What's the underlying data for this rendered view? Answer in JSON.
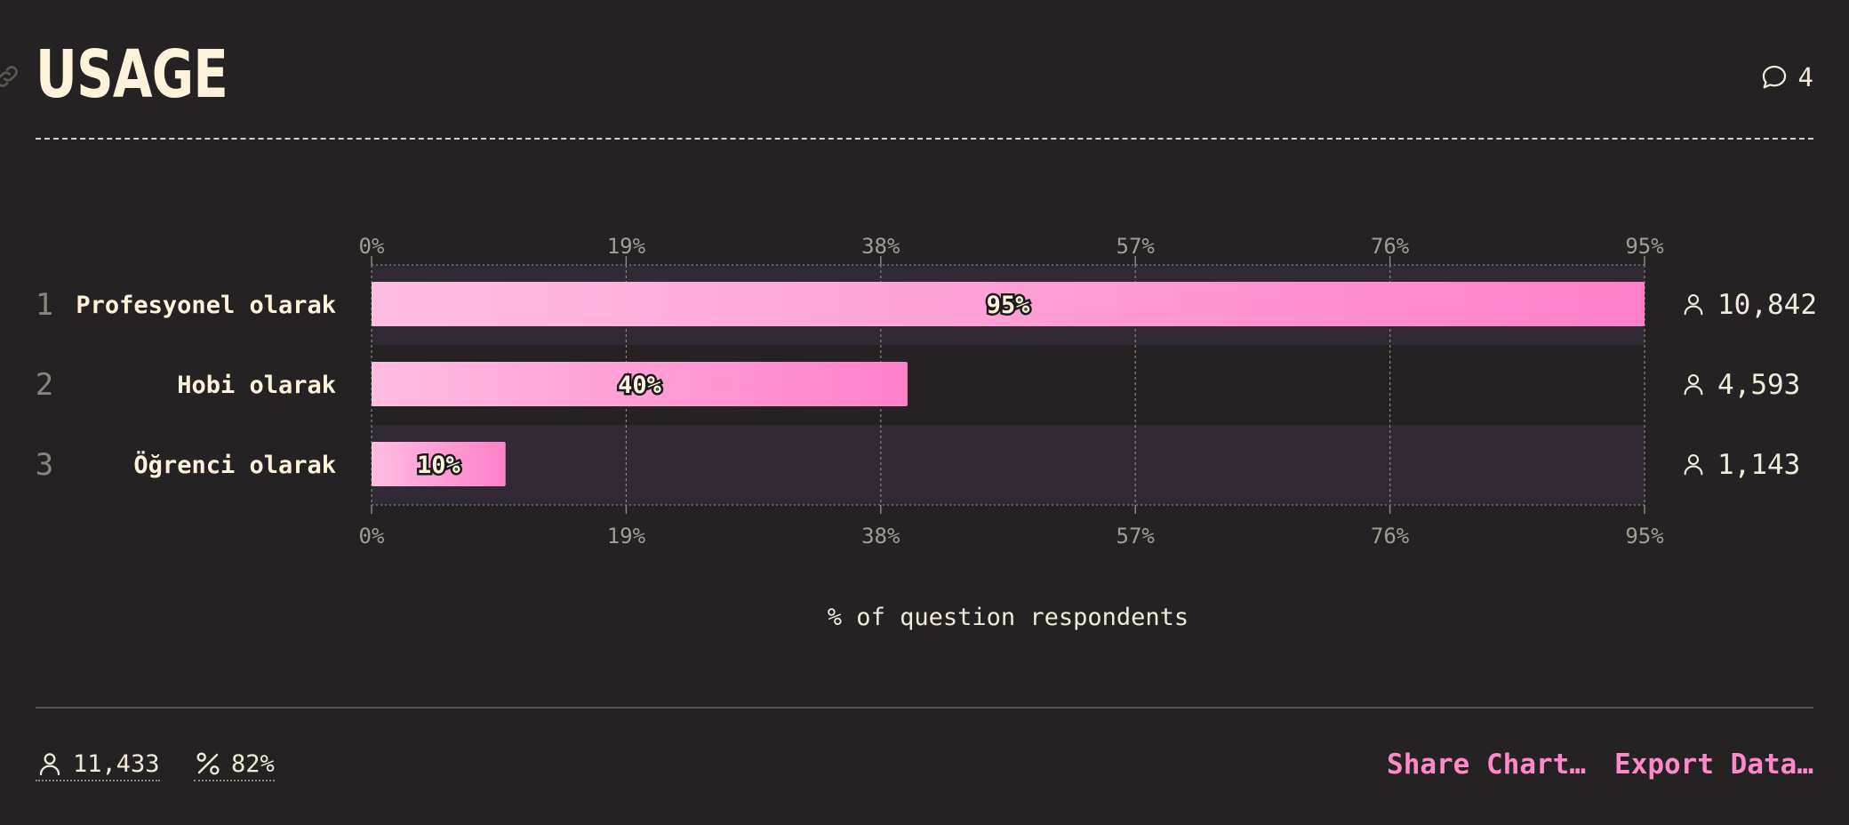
{
  "header": {
    "title": "USAGE",
    "comment_count": "4",
    "icons": [
      "link-icon",
      "comment-icon"
    ]
  },
  "chart_data": {
    "type": "bar",
    "orientation": "horizontal",
    "title": "",
    "xlabel": "% of question respondents",
    "xlim": [
      0,
      95
    ],
    "x_ticks": [
      "0%",
      "19%",
      "38%",
      "57%",
      "76%",
      "95%"
    ],
    "tick_values": [
      0,
      19,
      38,
      57,
      76,
      95
    ],
    "ranks": [
      "1",
      "2",
      "3"
    ],
    "categories": [
      "Profesyonel olarak",
      "Hobi olarak",
      "Öğrenci olarak"
    ],
    "values": [
      95,
      40,
      10
    ],
    "value_labels": [
      "95%",
      "40%",
      "10%"
    ],
    "counts": [
      "10,842",
      "4,593",
      "1,143"
    ],
    "grid": true,
    "colors": {
      "bar_start": "#ffbde1",
      "bar_end": "#ff80c9",
      "row_band": "#312a35",
      "grid": "#8a8580"
    }
  },
  "footer": {
    "respondents": "11,433",
    "percent": "82%",
    "share_label": "Share Chart…",
    "export_label": "Export Data…",
    "accent": "#ff89c8"
  }
}
